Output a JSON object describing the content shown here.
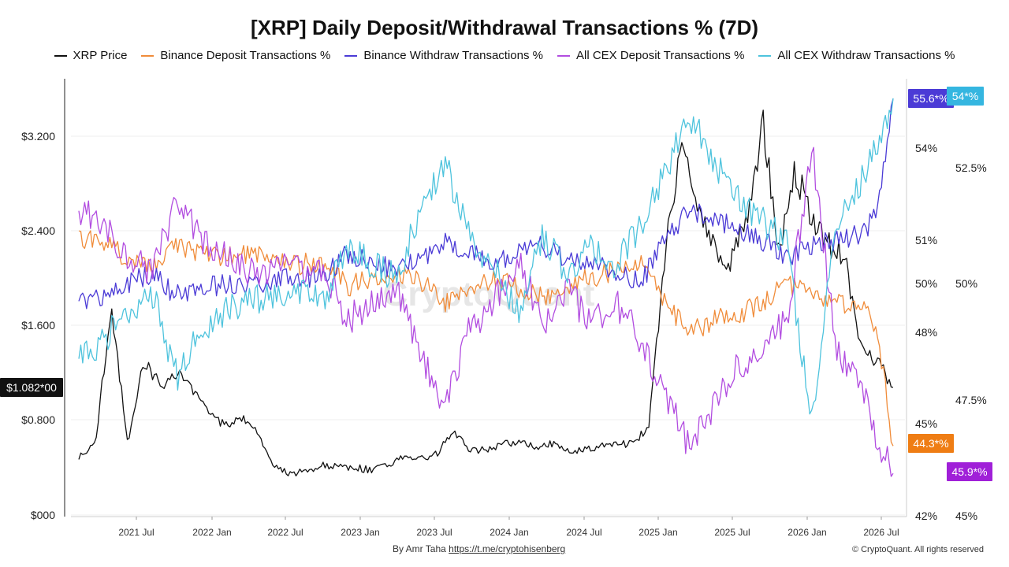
{
  "title": "[XRP] Daily Deposit/Withdrawal Transactions % (7D)",
  "legend": [
    {
      "label": "XRP Price",
      "color": "#111111"
    },
    {
      "label": "Binance Deposit Transactions %",
      "color": "#f08c3a"
    },
    {
      "label": "Binance Withdraw Transactions %",
      "color": "#4b3bd6"
    },
    {
      "label": "All CEX Deposit Transactions %",
      "color": "#b24de0"
    },
    {
      "label": "All CEX Withdraw Transactions %",
      "color": "#4ec3dd"
    }
  ],
  "watermark": "CryptoQuant",
  "footer": {
    "author": "By Amr Taha",
    "link": "https://t.me/cryptohisenberg",
    "copyright": "© CryptoQuant. All rights reserved"
  },
  "chart_data": {
    "type": "line",
    "x_ticks": [
      "2021 Jul",
      "2022 Jan",
      "2022 Jul",
      "2023 Jan",
      "2023 Jul",
      "2024 Jan",
      "2024 Jul",
      "2025 Jan",
      "2025 Jul",
      "2026 Jan",
      "2026 Jul"
    ],
    "x_range": [
      "2021-01",
      "2026-08"
    ],
    "y_left": {
      "ticks": [
        "$3.200",
        "$2.400",
        "$1.600",
        "$0.800",
        "$000"
      ],
      "range": [
        0,
        3.6
      ]
    },
    "y_right1": {
      "ticks": [
        "54%",
        "51%",
        "50%",
        "48%",
        "45%",
        "42%"
      ]
    },
    "y_right2": {
      "ticks": [
        "52.5%",
        "50%",
        "47.5%",
        "45%"
      ]
    },
    "grid": true,
    "legend_position": "top",
    "current_labels": [
      {
        "text": "$1.082*00",
        "color": "#111111",
        "axis": "left"
      },
      {
        "text": "55.6*%",
        "color": "#4b3bd6",
        "axis": "right1"
      },
      {
        "text": "54*%",
        "color": "#35b6e0",
        "axis": "right2"
      },
      {
        "text": "44.3*%",
        "color": "#ef7d14",
        "axis": "right1"
      },
      {
        "text": "45.9*%",
        "color": "#a020d8",
        "axis": "right2"
      }
    ],
    "series": [
      {
        "name": "XRP Price",
        "axis": "left",
        "color": "#111111",
        "x": [
          0,
          0.02,
          0.04,
          0.06,
          0.08,
          0.1,
          0.12,
          0.14,
          0.16,
          0.18,
          0.2,
          0.22,
          0.24,
          0.26,
          0.28,
          0.3,
          0.32,
          0.34,
          0.36,
          0.38,
          0.4,
          0.42,
          0.44,
          0.46,
          0.48,
          0.5,
          0.52,
          0.54,
          0.56,
          0.58,
          0.6,
          0.62,
          0.64,
          0.66,
          0.68,
          0.7,
          0.72,
          0.74,
          0.76,
          0.78,
          0.8,
          0.82,
          0.84,
          0.86,
          0.88,
          0.9,
          0.92,
          0.94,
          0.96,
          0.98,
          1.0
        ],
        "values": [
          0.5,
          0.6,
          1.75,
          0.6,
          1.3,
          1.1,
          1.2,
          1.05,
          0.85,
          0.75,
          0.82,
          0.7,
          0.4,
          0.35,
          0.38,
          0.42,
          0.4,
          0.4,
          0.38,
          0.42,
          0.5,
          0.48,
          0.52,
          0.72,
          0.55,
          0.55,
          0.6,
          0.62,
          0.58,
          0.6,
          0.55,
          0.55,
          0.58,
          0.6,
          0.6,
          0.75,
          2.2,
          3.2,
          2.6,
          2.3,
          2.1,
          2.5,
          3.3,
          2.2,
          2.9,
          2.5,
          2.3,
          2.2,
          1.4,
          1.3,
          1.08
        ]
      },
      {
        "name": "Binance Deposit Transactions %",
        "axis": "right1",
        "color": "#f08c3a",
        "x": [
          0,
          0.03,
          0.06,
          0.09,
          0.12,
          0.15,
          0.18,
          0.21,
          0.24,
          0.27,
          0.3,
          0.33,
          0.36,
          0.39,
          0.42,
          0.45,
          0.48,
          0.51,
          0.54,
          0.57,
          0.6,
          0.63,
          0.66,
          0.69,
          0.72,
          0.75,
          0.78,
          0.81,
          0.84,
          0.87,
          0.9,
          0.93,
          0.96,
          0.98,
          1.0
        ],
        "values": [
          51.0,
          51.0,
          50.4,
          50.1,
          50.8,
          50.6,
          50.5,
          50.5,
          50.4,
          50.2,
          50.3,
          49.5,
          49.8,
          50.0,
          49.6,
          49.0,
          49.4,
          49.8,
          49.4,
          49.2,
          49.5,
          49.8,
          50.0,
          50.4,
          49.0,
          48.0,
          48.4,
          48.6,
          49.0,
          49.6,
          49.2,
          49.0,
          48.8,
          48.2,
          44.3
        ]
      },
      {
        "name": "Binance Withdraw Transactions %",
        "axis": "right1",
        "color": "#4b3bd6",
        "x": [
          0,
          0.03,
          0.06,
          0.09,
          0.12,
          0.15,
          0.18,
          0.21,
          0.24,
          0.27,
          0.3,
          0.33,
          0.36,
          0.39,
          0.42,
          0.45,
          0.48,
          0.51,
          0.54,
          0.57,
          0.6,
          0.63,
          0.66,
          0.69,
          0.72,
          0.75,
          0.78,
          0.81,
          0.84,
          0.87,
          0.9,
          0.93,
          0.96,
          0.98,
          1.0
        ],
        "values": [
          49.0,
          49.2,
          49.6,
          49.9,
          49.2,
          49.4,
          49.6,
          49.6,
          49.7,
          49.8,
          49.8,
          50.6,
          50.3,
          50.0,
          50.4,
          51.0,
          50.6,
          50.2,
          50.6,
          50.8,
          50.4,
          50.2,
          50.0,
          49.6,
          51.0,
          52.0,
          51.6,
          51.4,
          51.0,
          50.4,
          50.8,
          51.0,
          51.2,
          51.8,
          55.6
        ]
      },
      {
        "name": "All CEX Deposit Transactions %",
        "axis": "right2",
        "color": "#b24de0",
        "x": [
          0,
          0.03,
          0.06,
          0.09,
          0.12,
          0.15,
          0.18,
          0.21,
          0.24,
          0.27,
          0.3,
          0.33,
          0.36,
          0.39,
          0.42,
          0.45,
          0.48,
          0.51,
          0.54,
          0.57,
          0.6,
          0.63,
          0.66,
          0.69,
          0.72,
          0.75,
          0.78,
          0.81,
          0.84,
          0.87,
          0.9,
          0.93,
          0.96,
          0.98,
          1.0
        ],
        "values": [
          51.6,
          51.2,
          50.6,
          50.2,
          51.8,
          51.0,
          50.6,
          50.3,
          50.3,
          50.3,
          50.4,
          49.2,
          49.6,
          49.9,
          48.4,
          47.4,
          49.0,
          49.6,
          50.6,
          49.0,
          49.8,
          49.2,
          49.6,
          48.8,
          47.6,
          46.4,
          47.4,
          48.2,
          48.6,
          49.2,
          53.0,
          48.6,
          47.8,
          46.6,
          45.9
        ]
      },
      {
        "name": "All CEX Withdraw Transactions %",
        "axis": "right2",
        "color": "#4ec3dd",
        "x": [
          0,
          0.03,
          0.06,
          0.09,
          0.12,
          0.15,
          0.18,
          0.21,
          0.24,
          0.27,
          0.3,
          0.33,
          0.36,
          0.39,
          0.42,
          0.45,
          0.48,
          0.51,
          0.54,
          0.57,
          0.6,
          0.63,
          0.66,
          0.69,
          0.72,
          0.75,
          0.78,
          0.81,
          0.84,
          0.87,
          0.9,
          0.93,
          0.96,
          0.98,
          1.0
        ],
        "values": [
          48.4,
          48.8,
          49.4,
          49.8,
          48.0,
          49.0,
          49.4,
          49.7,
          49.7,
          49.8,
          49.6,
          50.8,
          50.4,
          50.1,
          51.6,
          52.6,
          51.0,
          50.4,
          49.4,
          51.0,
          50.2,
          50.8,
          50.4,
          51.2,
          52.4,
          53.6,
          52.6,
          51.8,
          51.4,
          50.8,
          47.0,
          51.4,
          52.2,
          53.0,
          54.0
        ]
      }
    ]
  }
}
